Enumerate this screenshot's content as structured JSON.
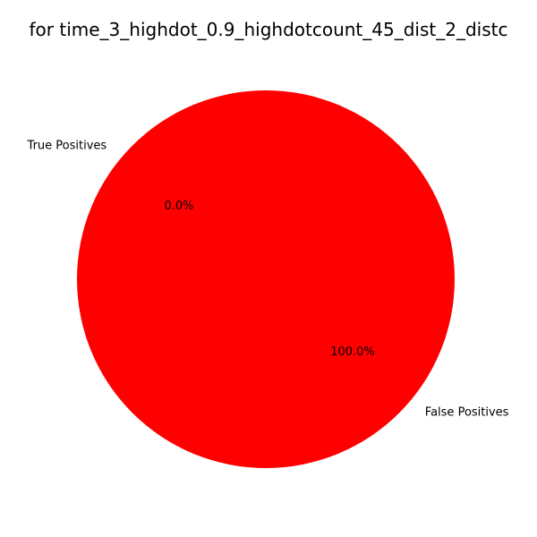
{
  "chart_data": {
    "type": "pie",
    "title": "for time_3_highdot_0.9_highdotcount_45_dist_2_distc",
    "slices": [
      {
        "label": "True Positives",
        "value": 0.0,
        "pct_label": "0.0%",
        "color": "#0000ff"
      },
      {
        "label": "False Positives",
        "value": 100.0,
        "pct_label": "100.0%",
        "color": "#ff0000"
      }
    ],
    "start_angle_deg": 140
  }
}
